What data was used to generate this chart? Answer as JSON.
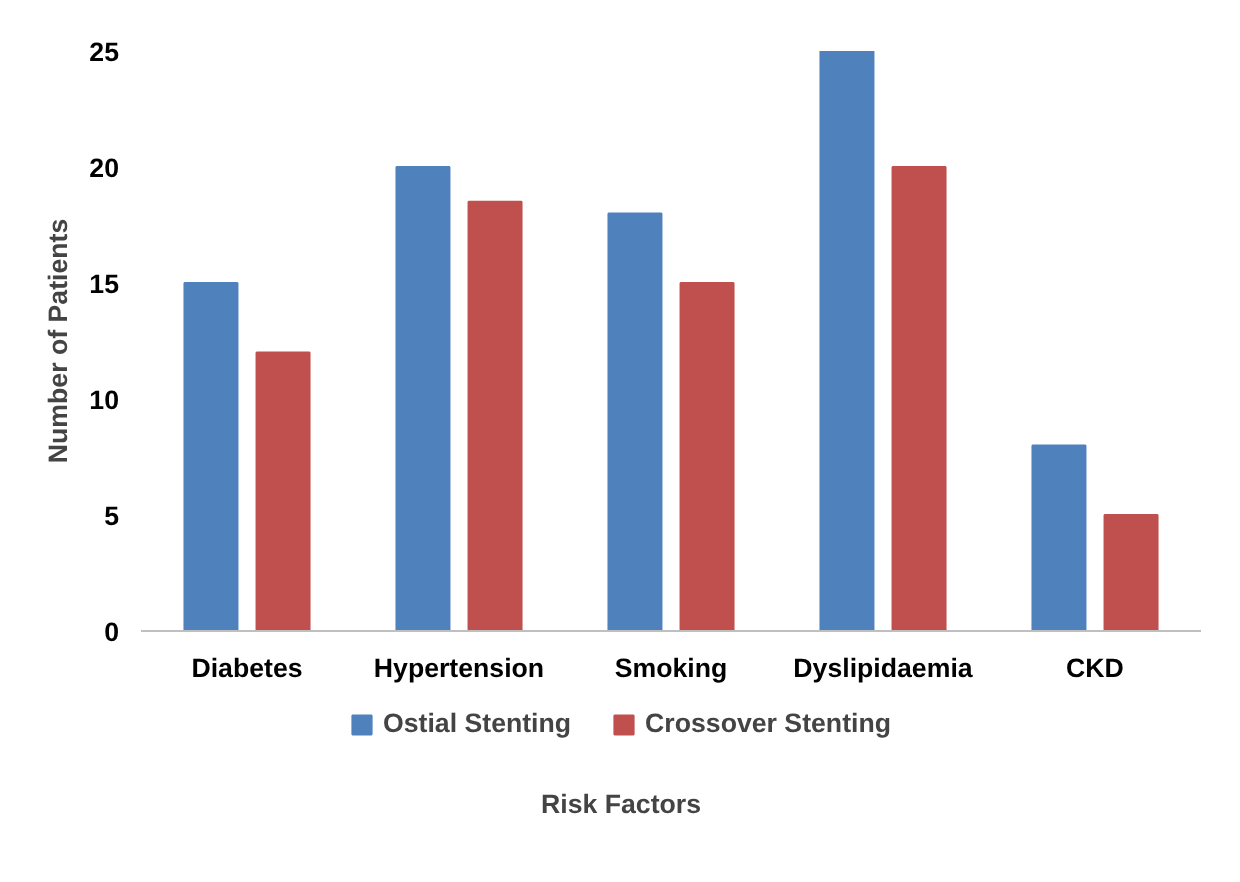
{
  "chart_data": {
    "type": "bar",
    "xlabel": "Risk Factors",
    "ylabel": "Number of Patients",
    "categories": [
      "Diabetes",
      "Hypertension",
      "Smoking",
      "Dyslipidaemia",
      "CKD"
    ],
    "series": [
      {
        "name": "Ostial Stenting",
        "color": "#4f81bd",
        "values": [
          15,
          20,
          18,
          25,
          8
        ]
      },
      {
        "name": "Crossover Stenting",
        "color": "#c0504d",
        "values": [
          12,
          18.5,
          15,
          20,
          5
        ]
      }
    ],
    "ylim": [
      0,
      25
    ],
    "yticks": [
      0,
      5,
      10,
      15,
      20,
      25
    ],
    "grid": false,
    "legend": "bottom"
  }
}
